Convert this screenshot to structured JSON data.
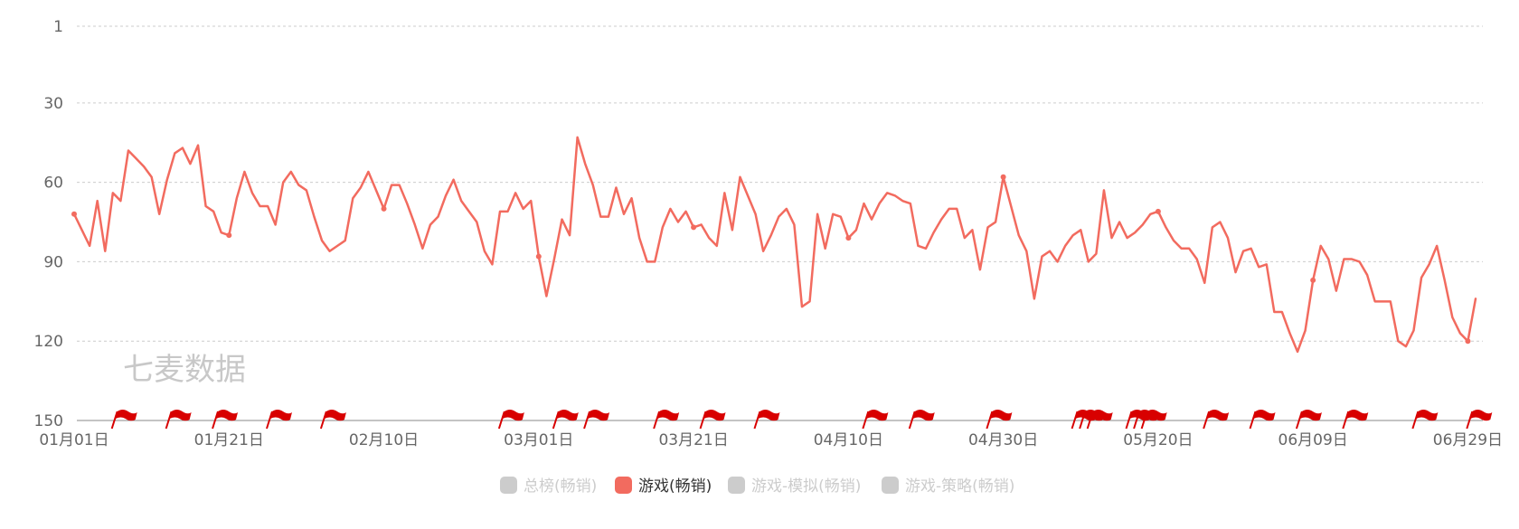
{
  "watermark": "七麦数据",
  "chart_data": {
    "type": "line",
    "title": "",
    "xlabel": "",
    "ylabel": "",
    "y_reversed": true,
    "ylim": [
      1,
      150
    ],
    "y_ticks": [
      1,
      30,
      60,
      90,
      120,
      150
    ],
    "x_tick_labels": [
      "01月01日",
      "01月21日",
      "02月10日",
      "03月01日",
      "03月21日",
      "04月10日",
      "04月30日",
      "05月20日",
      "06月09日",
      "06月29日"
    ],
    "x_start": "01月01日",
    "x_end": "06月29日",
    "grid": "horizontal-dashed",
    "legend_position": "bottom-center",
    "legend": [
      {
        "name": "总榜(畅销)",
        "active": false,
        "color": "#cccccc"
      },
      {
        "name": "游戏(畅销)",
        "active": true,
        "color": "#f26b5f"
      },
      {
        "name": "游戏-模拟(畅销)",
        "active": false,
        "color": "#cccccc"
      },
      {
        "name": "游戏-策略(畅销)",
        "active": false,
        "color": "#cccccc"
      }
    ],
    "series": [
      {
        "name": "游戏(畅销)",
        "color": "#f26b5f",
        "values": [
          72,
          78,
          84,
          67,
          86,
          64,
          67,
          48,
          51,
          54,
          58,
          72,
          59,
          49,
          47,
          53,
          46,
          69,
          71,
          79,
          80,
          66,
          56,
          64,
          69,
          69,
          76,
          60,
          56,
          61,
          63,
          73,
          82,
          86,
          84,
          82,
          66,
          62,
          56,
          63,
          70,
          61,
          61,
          68,
          76,
          85,
          76,
          73,
          65,
          59,
          67,
          71,
          75,
          86,
          91,
          71,
          71,
          64,
          70,
          67,
          88,
          103,
          89,
          74,
          80,
          43,
          53,
          61,
          73,
          73,
          62,
          72,
          66,
          81,
          90,
          90,
          77,
          70,
          75,
          71,
          77,
          76,
          81,
          84,
          64,
          78,
          58,
          65,
          72,
          86,
          80,
          73,
          70,
          76,
          107,
          105,
          72,
          85,
          72,
          73,
          81,
          78,
          68,
          74,
          68,
          64,
          65,
          67,
          68,
          84,
          85,
          79,
          74,
          70,
          70,
          81,
          78,
          93,
          77,
          75,
          58,
          69,
          80,
          86,
          104,
          88,
          86,
          90,
          84,
          80,
          78,
          90,
          87,
          63,
          81,
          75,
          81,
          79,
          76,
          72,
          71,
          77,
          82,
          85,
          85,
          89,
          98,
          77,
          75,
          81,
          94,
          86,
          85,
          92,
          91,
          109,
          109,
          117,
          124,
          116,
          97,
          84,
          89,
          101,
          89,
          89,
          90,
          95,
          105,
          105,
          105,
          120,
          122,
          116,
          96,
          91,
          84,
          97,
          111,
          117,
          120,
          104
        ]
      }
    ],
    "highlight_point_indices": [
      0,
      20,
      40,
      60,
      80,
      100,
      120,
      140,
      160,
      180
    ],
    "event_flag_day_indices": [
      3,
      10,
      16,
      23,
      30,
      53,
      60,
      64,
      73,
      79,
      86,
      100,
      106,
      116,
      127,
      128,
      129,
      134,
      135,
      136,
      144,
      150,
      156,
      162,
      171,
      178
    ]
  }
}
